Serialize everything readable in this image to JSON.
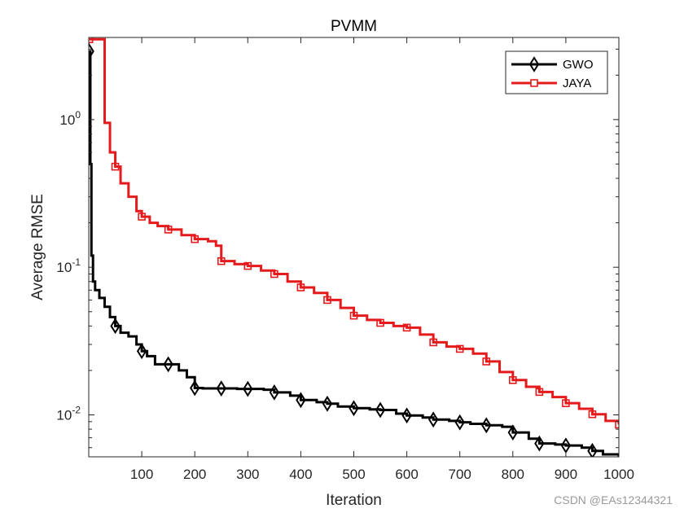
{
  "chart_data": {
    "type": "line",
    "title": "PVMM",
    "xlabel": "Iteration",
    "ylabel": "Average RMSE",
    "xlim": [
      0,
      1000
    ],
    "ylim": [
      0.0052,
      3.6
    ],
    "yscale": "log",
    "grid": false,
    "legend_position": "top-right",
    "x_ticks": [
      {
        "value": 100,
        "label": "100"
      },
      {
        "value": 200,
        "label": "200"
      },
      {
        "value": 300,
        "label": "300"
      },
      {
        "value": 400,
        "label": "400"
      },
      {
        "value": 500,
        "label": "500"
      },
      {
        "value": 600,
        "label": "600"
      },
      {
        "value": 700,
        "label": "700"
      },
      {
        "value": 800,
        "label": "800"
      },
      {
        "value": 900,
        "label": "900"
      },
      {
        "value": 1000,
        "label": "1000"
      }
    ],
    "y_ticks": [
      {
        "value": 1,
        "base": "10",
        "exp": "0"
      },
      {
        "value": 0.1,
        "base": "10",
        "exp": "-1"
      },
      {
        "value": 0.01,
        "base": "10",
        "exp": "-2"
      }
    ],
    "series": [
      {
        "name": "GWO",
        "color": "#000000",
        "marker": "diamond",
        "x": [
          1,
          3,
          5,
          8,
          12,
          20,
          30,
          40,
          50,
          60,
          75,
          90,
          100,
          110,
          125,
          140,
          150,
          170,
          185,
          200,
          215,
          250,
          280,
          300,
          330,
          350,
          380,
          400,
          430,
          450,
          470,
          500,
          530,
          550,
          580,
          600,
          630,
          650,
          680,
          700,
          720,
          750,
          780,
          800,
          830,
          850,
          880,
          900,
          930,
          950,
          970,
          1000
        ],
        "y": [
          2.9,
          0.5,
          0.12,
          0.08,
          0.07,
          0.062,
          0.054,
          0.046,
          0.04,
          0.036,
          0.034,
          0.03,
          0.027,
          0.025,
          0.022,
          0.022,
          0.022,
          0.02,
          0.018,
          0.0152,
          0.0151,
          0.0151,
          0.015,
          0.015,
          0.0148,
          0.0142,
          0.0135,
          0.0126,
          0.0122,
          0.0119,
          0.0114,
          0.0111,
          0.0109,
          0.0108,
          0.0102,
          0.0099,
          0.0096,
          0.0093,
          0.0091,
          0.0089,
          0.0087,
          0.0085,
          0.0083,
          0.0076,
          0.0069,
          0.0064,
          0.0063,
          0.0062,
          0.006,
          0.0057,
          0.0054,
          0.0052
        ]
      },
      {
        "name": "JAYA",
        "color": "#e41a1c",
        "marker": "square",
        "x": [
          1,
          5,
          10,
          20,
          25,
          30,
          40,
          50,
          60,
          75,
          90,
          100,
          115,
          130,
          150,
          175,
          200,
          225,
          240,
          250,
          275,
          300,
          325,
          350,
          375,
          400,
          425,
          450,
          475,
          500,
          525,
          550,
          575,
          600,
          625,
          650,
          675,
          700,
          725,
          750,
          775,
          800,
          825,
          850,
          875,
          900,
          925,
          950,
          975,
          1000
        ],
        "y": [
          3.5,
          3.5,
          3.5,
          3.5,
          3.5,
          0.95,
          0.6,
          0.48,
          0.37,
          0.3,
          0.24,
          0.22,
          0.2,
          0.19,
          0.18,
          0.165,
          0.155,
          0.15,
          0.14,
          0.11,
          0.105,
          0.102,
          0.095,
          0.09,
          0.08,
          0.073,
          0.067,
          0.06,
          0.053,
          0.047,
          0.044,
          0.042,
          0.04,
          0.039,
          0.035,
          0.031,
          0.029,
          0.028,
          0.026,
          0.023,
          0.0195,
          0.0172,
          0.0155,
          0.0143,
          0.0132,
          0.012,
          0.011,
          0.0101,
          0.0091,
          0.0086
        ]
      }
    ]
  },
  "watermark": "CSDN @EAs12344321"
}
